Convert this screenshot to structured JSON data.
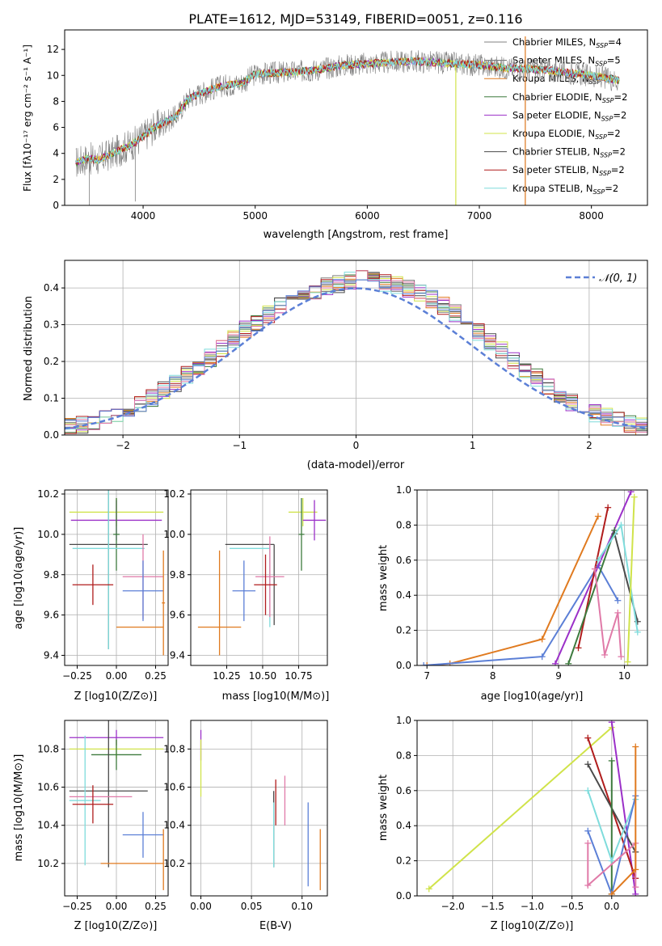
{
  "figure": {
    "title": "PLATE=1612, MJD=53149, FIBERID=0051, z=0.116"
  },
  "legend_entries": [
    {
      "name": "Chabrier MILES",
      "suffix": "N",
      "sub": "SSP",
      "tail": "=4",
      "color": "#808080"
    },
    {
      "name": "Salpeter MILES",
      "suffix": "N",
      "sub": "SSP",
      "tail": "=5",
      "color": "#6a6a6a"
    },
    {
      "name": "Kroupa MILES",
      "suffix": "N",
      "sub": "SSP",
      "tail": "=3",
      "color": "#e07a1f"
    },
    {
      "name": "Chabrier ELODIE",
      "suffix": "N",
      "sub": "SSP",
      "tail": "=2",
      "color": "#3d7a3d"
    },
    {
      "name": "Salpeter ELODIE",
      "suffix": "N",
      "sub": "SSP",
      "tail": "=2",
      "color": "#9b30c8"
    },
    {
      "name": "Kroupa ELODIE",
      "suffix": "N",
      "sub": "SSP",
      "tail": "=2",
      "color": "#d0e34a"
    },
    {
      "name": "Chabrier STELIB",
      "suffix": "N",
      "sub": "SSP",
      "tail": "=2",
      "color": "#4a4a4a"
    },
    {
      "name": "Salpeter STELIB",
      "suffix": "N",
      "sub": "SSP",
      "tail": "=2",
      "color": "#b01c1c"
    },
    {
      "name": "Kroupa STELIB",
      "suffix": "N",
      "sub": "SSP",
      "tail": "=2",
      "color": "#7fdcdc"
    }
  ],
  "chart_data": [
    {
      "type": "line",
      "id": "spectrum",
      "xlabel": "wavelength [Angstrom, rest frame]",
      "ylabel": "Flux [fλ10⁻¹⁷ erg cm⁻² s⁻¹ A⁻¹]",
      "xlim": [
        3300,
        8500
      ],
      "ylim": [
        0,
        13.5
      ],
      "xticks": [
        4000,
        5000,
        6000,
        7000,
        8000
      ],
      "yticks": [
        0,
        2,
        4,
        6,
        8,
        10,
        12
      ],
      "continuum": {
        "x": [
          3400,
          3500,
          3600,
          3700,
          3800,
          3900,
          4000,
          4100,
          4200,
          4300,
          4400,
          4500,
          4600,
          4700,
          4800,
          4900,
          5000,
          5200,
          5400,
          5600,
          5800,
          6000,
          6200,
          6400,
          6600,
          6800,
          7000,
          7200,
          7400,
          7600,
          7800,
          8000,
          8250
        ],
        "y": [
          3.3,
          3.6,
          3.5,
          3.9,
          4.3,
          4.7,
          5.3,
          6.0,
          6.4,
          6.9,
          8.2,
          8.6,
          8.9,
          9.2,
          9.3,
          9.5,
          10.1,
          10.2,
          10.3,
          10.5,
          10.8,
          10.9,
          11.0,
          11.1,
          11.0,
          10.9,
          10.8,
          10.6,
          10.5,
          10.4,
          10.2,
          10.0,
          9.6
        ]
      },
      "spikes": [
        {
          "x": 3520,
          "y": 0
        },
        {
          "x": 3930,
          "y": 0.3
        },
        {
          "x": 6790,
          "y": 0
        },
        {
          "x": 7410,
          "y": 0
        }
      ]
    },
    {
      "type": "bar",
      "id": "residual-histogram",
      "xlabel": "(data-model)/error",
      "ylabel": "Normed distribution",
      "xlim": [
        -2.5,
        2.5
      ],
      "ylim": [
        0,
        0.475
      ],
      "xticks": [
        -2,
        -1,
        0,
        1,
        2
      ],
      "yticks": [
        0.0,
        0.1,
        0.2,
        0.3,
        0.4
      ],
      "bins": [
        -2.5,
        -2.4,
        -2.3,
        -2.2,
        -2.1,
        -2.0,
        -1.9,
        -1.8,
        -1.7,
        -1.6,
        -1.5,
        -1.4,
        -1.3,
        -1.2,
        -1.1,
        -1.0,
        -0.9,
        -0.8,
        -0.7,
        -0.6,
        -0.5,
        -0.4,
        -0.3,
        -0.2,
        -0.1,
        0.0,
        0.1,
        0.2,
        0.3,
        0.4,
        0.5,
        0.6,
        0.7,
        0.8,
        0.9,
        1.0,
        1.1,
        1.2,
        1.3,
        1.4,
        1.5,
        1.6,
        1.7,
        1.8,
        1.9,
        2.0,
        2.1,
        2.2,
        2.3,
        2.4,
        2.5
      ],
      "density_mean": [
        0.022,
        0.028,
        0.036,
        0.045,
        0.056,
        0.07,
        0.085,
        0.1,
        0.12,
        0.14,
        0.165,
        0.185,
        0.21,
        0.235,
        0.26,
        0.285,
        0.305,
        0.33,
        0.35,
        0.37,
        0.385,
        0.395,
        0.405,
        0.41,
        0.42,
        0.425,
        0.42,
        0.415,
        0.41,
        0.4,
        0.385,
        0.37,
        0.35,
        0.33,
        0.305,
        0.28,
        0.255,
        0.23,
        0.205,
        0.18,
        0.155,
        0.13,
        0.11,
        0.09,
        0.075,
        0.06,
        0.048,
        0.038,
        0.03,
        0.024
      ],
      "reference_curve": {
        "name": "𝒩(0, 1)",
        "color": "#5b7fd6"
      }
    },
    {
      "type": "scatter",
      "id": "age-vs-metallicity",
      "xlabel": "Z [log10(Z/Z⊙)]",
      "ylabel": "age  [log10(age/yr)]",
      "xlim": [
        -0.33,
        0.33
      ],
      "ylim": [
        9.35,
        10.22
      ],
      "xticks": [
        -0.25,
        0.0,
        0.25
      ],
      "yticks": [
        9.4,
        9.6,
        9.8,
        10.0,
        10.2
      ],
      "points": [
        {
          "x": 0.0,
          "y": 10.11,
          "xerr": 0.3,
          "yerr": 0.07,
          "color": "#d0e34a"
        },
        {
          "x": 0.0,
          "y": 10.07,
          "xerr": 0.29,
          "yerr": 0.1,
          "color": "#9b30c8"
        },
        {
          "x": 0.0,
          "y": 10.0,
          "xerr": 0.02,
          "yerr": 0.18,
          "color": "#3d7a3d"
        },
        {
          "x": -0.05,
          "y": 9.95,
          "xerr": 0.25,
          "yerr": 0.52,
          "color": "#4a4a4a"
        },
        {
          "x": -0.05,
          "y": 9.93,
          "xerr": 0.23,
          "yerr": 0.5,
          "color": "#7fdcdc"
        },
        {
          "x": 0.17,
          "y": 9.79,
          "xerr": 0.13,
          "yerr": 0.21,
          "color": "#e07aa8"
        },
        {
          "x": -0.15,
          "y": 9.75,
          "xerr": 0.13,
          "yerr": 0.1,
          "color": "#b01c1c"
        },
        {
          "x": 0.17,
          "y": 9.72,
          "xerr": 0.13,
          "yerr": 0.15,
          "color": "#5b7fd6"
        },
        {
          "x": 0.3,
          "y": 9.66,
          "xerr": 0.01,
          "yerr": 0.26,
          "color": "#e07a1f"
        },
        {
          "x": 0.15,
          "y": 9.54,
          "xerr": 0.15,
          "yerr": 0.0,
          "color": "#e07a1f"
        }
      ]
    },
    {
      "type": "scatter",
      "id": "age-vs-mass",
      "xlabel": "mass [log10(M/M⊙)]",
      "ylabel": "",
      "xlim": [
        10.0,
        10.95
      ],
      "ylim": [
        9.35,
        10.22
      ],
      "xticks": [
        10.25,
        10.5,
        10.75
      ],
      "yticks": [
        9.4,
        9.6,
        9.8,
        10.0,
        10.2
      ],
      "points": [
        {
          "x": 10.78,
          "y": 10.11,
          "xerr": 0.1,
          "yerr": 0.07,
          "color": "#d0e34a"
        },
        {
          "x": 10.86,
          "y": 10.07,
          "xerr": 0.08,
          "yerr": 0.1,
          "color": "#9b30c8"
        },
        {
          "x": 10.77,
          "y": 10.0,
          "xerr": 0.02,
          "yerr": 0.18,
          "color": "#3d7a3d"
        },
        {
          "x": 10.41,
          "y": 9.95,
          "xerr": 0.17,
          "yerr": 0.0,
          "color": "#4a4a4a"
        },
        {
          "x": 10.58,
          "y": 9.75,
          "xerr": 0.0,
          "yerr": 0.2,
          "color": "#4a4a4a"
        },
        {
          "x": 10.41,
          "y": 9.93,
          "xerr": 0.14,
          "yerr": 0.0,
          "color": "#7fdcdc"
        },
        {
          "x": 10.55,
          "y": 9.74,
          "xerr": 0.0,
          "yerr": 0.2,
          "color": "#7fdcdc"
        },
        {
          "x": 10.55,
          "y": 9.79,
          "xerr": 0.1,
          "yerr": 0.2,
          "color": "#e07aa8"
        },
        {
          "x": 10.52,
          "y": 9.75,
          "xerr": 0.08,
          "yerr": 0.15,
          "color": "#b01c1c"
        },
        {
          "x": 10.37,
          "y": 9.72,
          "xerr": 0.08,
          "yerr": 0.15,
          "color": "#5b7fd6"
        },
        {
          "x": 10.2,
          "y": 9.66,
          "xerr": 0.0,
          "yerr": 0.26,
          "color": "#e07a1f"
        },
        {
          "x": 10.2,
          "y": 9.54,
          "xerr": 0.15,
          "yerr": 0.0,
          "color": "#e07a1f"
        }
      ]
    },
    {
      "type": "line",
      "id": "mass-weight-vs-age",
      "xlabel": "age  [log10(age/yr)]",
      "ylabel": "mass weight",
      "xlim": [
        6.85,
        10.35
      ],
      "ylim": [
        0,
        1.0
      ],
      "xticks": [
        7,
        8,
        9,
        10
      ],
      "yticks": [
        0.0,
        0.2,
        0.4,
        0.6,
        0.8,
        1.0
      ],
      "series": [
        {
          "color": "#e07a1f",
          "x": [
            7.0,
            7.35,
            8.75,
            9.6
          ],
          "y": [
            0.0,
            0.01,
            0.15,
            0.85
          ]
        },
        {
          "color": "#5b7fd6",
          "x": [
            6.95,
            8.75,
            9.6,
            9.9
          ],
          "y": [
            0.0,
            0.05,
            0.57,
            0.37
          ]
        },
        {
          "color": "#9b30c8",
          "x": [
            8.95,
            10.1
          ],
          "y": [
            0.01,
            0.99
          ]
        },
        {
          "color": "#b01c1c",
          "x": [
            9.3,
            9.75
          ],
          "y": [
            0.1,
            0.9
          ]
        },
        {
          "color": "#3d7a3d",
          "x": [
            9.15,
            9.85
          ],
          "y": [
            0.01,
            0.77
          ]
        },
        {
          "color": "#4a4a4a",
          "x": [
            9.85,
            10.2
          ],
          "y": [
            0.75,
            0.25
          ]
        },
        {
          "color": "#e07aa8",
          "x": [
            9.55,
            9.7,
            9.9,
            9.95
          ],
          "y": [
            0.55,
            0.06,
            0.3,
            0.05
          ]
        },
        {
          "color": "#7fdcdc",
          "x": [
            9.6,
            9.95,
            10.2
          ],
          "y": [
            0.6,
            0.8,
            0.19
          ]
        },
        {
          "color": "#d0e34a",
          "x": [
            10.05,
            10.15
          ],
          "y": [
            0.02,
            0.96
          ]
        }
      ]
    },
    {
      "type": "scatter",
      "id": "mass-vs-metallicity",
      "xlabel": "Z [log10(Z/Z⊙)]",
      "ylabel": "mass [log10(M/M⊙)]",
      "xlim": [
        -0.33,
        0.33
      ],
      "ylim": [
        10.03,
        10.95
      ],
      "xticks": [
        -0.25,
        0.0,
        0.25
      ],
      "yticks": [
        10.2,
        10.4,
        10.6,
        10.8
      ],
      "points": [
        {
          "x": 0.0,
          "y": 10.86,
          "xerr": 0.3,
          "yerr": 0.04,
          "color": "#9b30c8"
        },
        {
          "x": 0.0,
          "y": 10.8,
          "xerr": 0.3,
          "yerr": 0.05,
          "color": "#d0e34a"
        },
        {
          "x": 0.0,
          "y": 10.77,
          "xerr": 0.16,
          "yerr": 0.08,
          "color": "#3d7a3d"
        },
        {
          "x": -0.05,
          "y": 10.58,
          "xerr": 0.25,
          "yerr": 0.4,
          "color": "#4a4a4a"
        },
        {
          "x": -0.1,
          "y": 10.55,
          "xerr": 0.2,
          "yerr": 0.0,
          "color": "#e07aa8"
        },
        {
          "x": -0.2,
          "y": 10.53,
          "xerr": 0.1,
          "yerr": 0.34,
          "color": "#7fdcdc"
        },
        {
          "x": -0.15,
          "y": 10.51,
          "xerr": 0.13,
          "yerr": 0.1,
          "color": "#b01c1c"
        },
        {
          "x": 0.17,
          "y": 10.35,
          "xerr": 0.13,
          "yerr": 0.12,
          "color": "#5b7fd6"
        },
        {
          "x": 0.1,
          "y": 10.2,
          "xerr": 0.2,
          "yerr": 0.0,
          "color": "#e07a1f"
        },
        {
          "x": 0.3,
          "y": 10.22,
          "xerr": 0.0,
          "yerr": 0.16,
          "color": "#e07a1f"
        }
      ]
    },
    {
      "type": "scatter",
      "id": "mass-vs-extinction",
      "xlabel": "E(B-V)",
      "ylabel": "",
      "xlim": [
        -0.01,
        0.125
      ],
      "ylim": [
        10.03,
        10.95
      ],
      "xticks": [
        0.0,
        0.05,
        0.1
      ],
      "yticks": [
        10.2,
        10.4,
        10.6,
        10.8
      ],
      "points": [
        {
          "x": 0.0,
          "y": 10.82,
          "xerr": 0.0,
          "yerr": 0.08,
          "color": "#9b30c8"
        },
        {
          "x": 0.0,
          "y": 10.7,
          "xerr": 0.0,
          "yerr": 0.15,
          "color": "#d0e34a"
        },
        {
          "x": 0.072,
          "y": 10.38,
          "xerr": 0.0,
          "yerr": 0.2,
          "color": "#4a4a4a"
        },
        {
          "x": 0.072,
          "y": 10.35,
          "xerr": 0.0,
          "yerr": 0.17,
          "color": "#7fdcdc"
        },
        {
          "x": 0.074,
          "y": 10.52,
          "xerr": 0.0,
          "yerr": 0.12,
          "color": "#b01c1c"
        },
        {
          "x": 0.083,
          "y": 10.53,
          "xerr": 0.0,
          "yerr": 0.13,
          "color": "#e07aa8"
        },
        {
          "x": 0.106,
          "y": 10.3,
          "xerr": 0.0,
          "yerr": 0.22,
          "color": "#5b7fd6"
        },
        {
          "x": 0.118,
          "y": 10.22,
          "xerr": 0.0,
          "yerr": 0.16,
          "color": "#e07a1f"
        }
      ]
    },
    {
      "type": "line",
      "id": "mass-weight-vs-metallicity",
      "xlabel": "Z [log10(Z/Z⊙)]",
      "ylabel": "mass weight",
      "xlim": [
        -2.45,
        0.45
      ],
      "ylim": [
        0,
        1.0
      ],
      "xticks": [
        -2.0,
        -1.5,
        -1.0,
        -0.5,
        0.0
      ],
      "yticks": [
        0.0,
        0.2,
        0.4,
        0.6,
        0.8,
        1.0
      ],
      "series": [
        {
          "color": "#d0e34a",
          "x": [
            -2.3,
            0.0
          ],
          "y": [
            0.04,
            0.96
          ]
        },
        {
          "color": "#9b30c8",
          "x": [
            0.0,
            0.3
          ],
          "y": [
            0.99,
            0.01
          ]
        },
        {
          "color": "#b01c1c",
          "x": [
            -0.3,
            0.3
          ],
          "y": [
            0.9,
            0.1
          ]
        },
        {
          "color": "#4a4a4a",
          "x": [
            -0.3,
            0.3
          ],
          "y": [
            0.75,
            0.25
          ]
        },
        {
          "color": "#3d7a3d",
          "x": [
            0.0,
            0.0
          ],
          "y": [
            0.77,
            0.01
          ]
        },
        {
          "color": "#7fdcdc",
          "x": [
            -0.3,
            0.0,
            0.3
          ],
          "y": [
            0.6,
            0.2,
            0.55
          ]
        },
        {
          "color": "#5b7fd6",
          "x": [
            -0.3,
            0.0,
            0.3
          ],
          "y": [
            0.37,
            0.01,
            0.57
          ]
        },
        {
          "color": "#e07aa8",
          "x": [
            -0.3,
            -0.3,
            0.3,
            0.3
          ],
          "y": [
            0.3,
            0.06,
            0.3,
            0.05
          ]
        },
        {
          "color": "#e07a1f",
          "x": [
            0.0,
            0.3,
            0.3
          ],
          "y": [
            0.01,
            0.15,
            0.85
          ]
        }
      ]
    }
  ]
}
